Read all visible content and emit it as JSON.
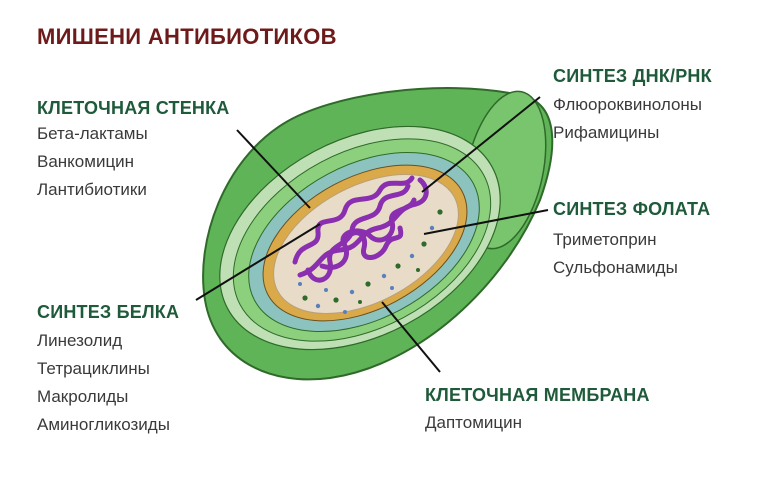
{
  "title": "МИШЕНИ АНТИБИОТИКОВ",
  "colors": {
    "title": "#6e1a1a",
    "heading": "#1f5a3a",
    "item": "#3a3a3a",
    "outer_wall": "#5fb457",
    "wall_light": "#bfe0b4",
    "mid_layer": "#8ccf7c",
    "membrane": "#8cc3bf",
    "inner_rim": "#d9a94a",
    "cytoplasm": "#e8dcc8",
    "nucleoid": "#8a2fb0"
  },
  "groups": {
    "cell_wall": {
      "heading": "КЛЕТОЧНАЯ СТЕНКА",
      "items": [
        "Бета-лактамы",
        "Ванкомицин",
        "Лантибиотики"
      ]
    },
    "dna_rna": {
      "heading": "СИНТЕЗ ДНК/РНК",
      "items": [
        "Флюороквинолоны",
        "Рифамицины"
      ]
    },
    "folate": {
      "heading": "СИНТЕЗ ФОЛАТА",
      "items": [
        "Триметоприн",
        "Сульфонамиды"
      ]
    },
    "protein": {
      "heading": "СИНТЕЗ БЕЛКА",
      "items": [
        "Линезолид",
        "Тетрациклины",
        "Макролиды",
        "Аминогликозиды"
      ]
    },
    "membrane": {
      "heading": "КЛЕТОЧНАЯ МЕМБРАНА",
      "items": [
        "Даптомицин"
      ]
    }
  }
}
